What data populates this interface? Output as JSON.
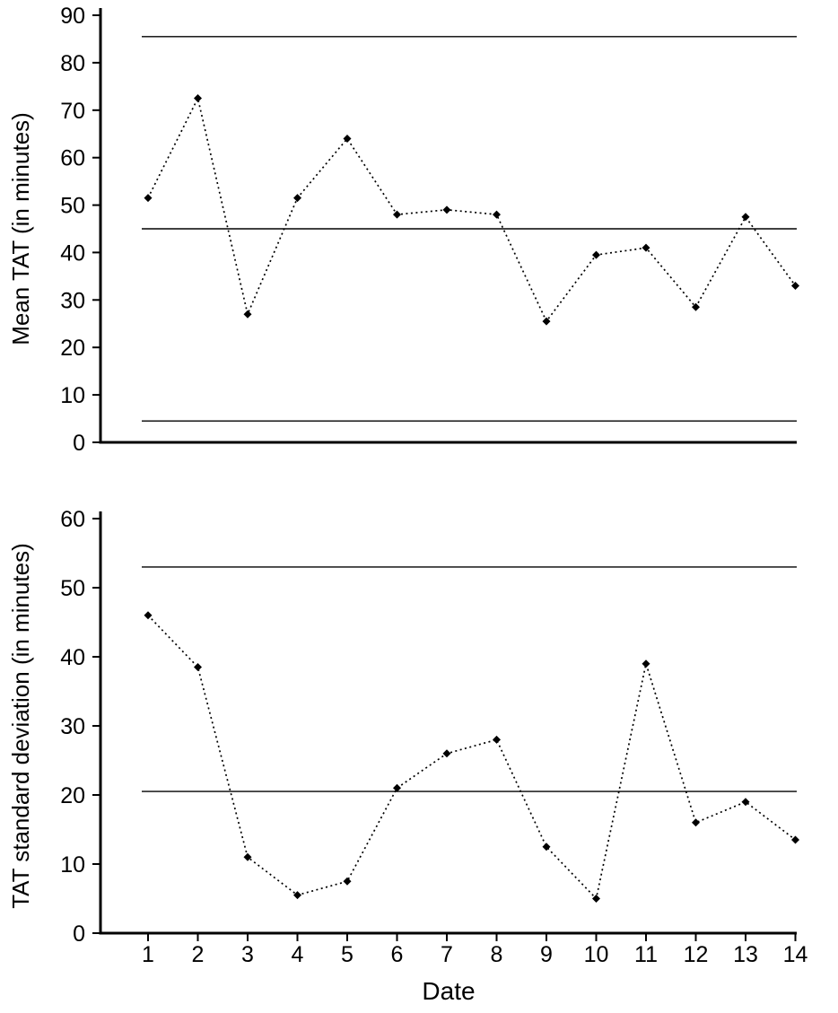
{
  "colors": {
    "ink": "#000000",
    "background": "#ffffff"
  },
  "chart_data": [
    {
      "type": "line",
      "name": "mean-tat-control-chart",
      "title": "",
      "xlabel": "",
      "ylabel": "Mean TAT (in minutes)",
      "x": [
        1,
        2,
        3,
        4,
        5,
        6,
        7,
        8,
        9,
        10,
        11,
        12,
        13,
        14
      ],
      "series": [
        {
          "name": "Mean TAT",
          "values": [
            51.5,
            72.5,
            27,
            51.5,
            64,
            48,
            49,
            48,
            25.5,
            39.5,
            41,
            28.5,
            47.5,
            33
          ]
        }
      ],
      "control_lines": [
        {
          "name": "upper-control-limit",
          "value": 85.5
        },
        {
          "name": "center-line",
          "value": 45
        },
        {
          "name": "lower-control-limit",
          "value": 4.5
        }
      ],
      "ylim": [
        0,
        90
      ],
      "yticks": [
        0,
        10,
        20,
        30,
        40,
        50,
        60,
        70,
        80,
        90
      ],
      "marker": "diamond",
      "line_style": "dotted",
      "grid": false,
      "legend": "none"
    },
    {
      "type": "line",
      "name": "tat-standard-deviation-control-chart",
      "title": "",
      "xlabel": "Date",
      "ylabel": "TAT standard deviation (in minutes)",
      "x": [
        1,
        2,
        3,
        4,
        5,
        6,
        7,
        8,
        9,
        10,
        11,
        12,
        13,
        14
      ],
      "series": [
        {
          "name": "TAT standard deviation",
          "values": [
            46,
            38.5,
            11,
            5.5,
            7.5,
            21,
            26,
            28,
            12.5,
            5,
            39,
            16,
            19,
            13.5
          ]
        }
      ],
      "control_lines": [
        {
          "name": "upper-control-limit",
          "value": 53
        },
        {
          "name": "center-line",
          "value": 20.5
        }
      ],
      "ylim": [
        0,
        60
      ],
      "yticks": [
        0,
        10,
        20,
        30,
        40,
        50,
        60
      ],
      "marker": "diamond",
      "line_style": "dotted",
      "grid": false,
      "legend": "none"
    }
  ]
}
